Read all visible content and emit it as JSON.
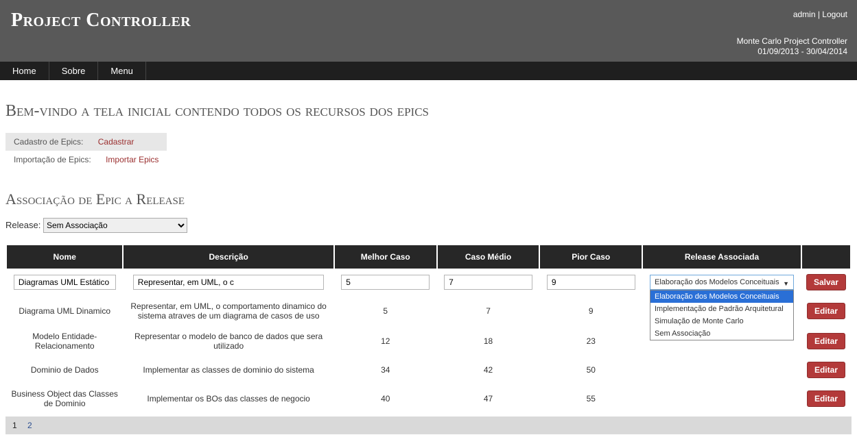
{
  "header": {
    "app_title": "Project Controller",
    "user": "admin",
    "logout": "Logout",
    "separator": " | ",
    "project_name": "Monte Carlo Project Controller",
    "date_range": "01/09/2013 - 30/04/2014"
  },
  "nav": {
    "home": "Home",
    "about": "Sobre",
    "menu": "Menu"
  },
  "page": {
    "heading": "Bem-vindo a tela inicial contendo todos os recursos dos epics",
    "actions": {
      "register_label": "Cadastro de Epics:",
      "register_link": "Cadastrar",
      "import_label": "Importação de Epics:",
      "import_link": "Importar Epics"
    },
    "assoc_heading": "Associação de Epic a Release",
    "release_label": "Release:",
    "release_selected": "Sem Associação"
  },
  "table": {
    "columns": {
      "nome": "Nome",
      "descricao": "Descrição",
      "melhor": "Melhor Caso",
      "medio": "Caso Médio",
      "pior": "Pior Caso",
      "release": "Release Associada"
    },
    "edit_row": {
      "nome": "Diagramas UML Estático",
      "descricao": "Representar, em UML, o c",
      "melhor": "5",
      "medio": "7",
      "pior": "9",
      "release_current": "Elaboração dos Modelos Conceituais",
      "release_options": [
        "Elaboração dos Modelos Conceituais",
        "Implementação de Padrão Arquitetural",
        "Simulação de Monte Carlo",
        "Sem Associação"
      ],
      "save_label": "Salvar"
    },
    "rows": [
      {
        "nome": "Diagrama UML Dinamico",
        "descricao": "Representar, em UML, o comportamento dinamico do sistema atraves de um diagrama de casos de uso",
        "melhor": "5",
        "medio": "7",
        "pior": "9"
      },
      {
        "nome": "Modelo Entidade-Relacionamento",
        "descricao": "Representar o modelo de banco de dados que sera utilizado",
        "melhor": "12",
        "medio": "18",
        "pior": "23"
      },
      {
        "nome": "Dominio de Dados",
        "descricao": "Implementar as classes de dominio do sistema",
        "melhor": "34",
        "medio": "42",
        "pior": "50"
      },
      {
        "nome": "Business Object das Classes de Dominio",
        "descricao": "Implementar os BOs das classes de negocio",
        "melhor": "40",
        "medio": "47",
        "pior": "55"
      }
    ],
    "edit_label": "Editar"
  },
  "pager": {
    "pages": [
      "1",
      "2"
    ],
    "current": "1"
  },
  "colors": {
    "banner_bg": "#595959",
    "nav_bg": "#1f1f1f",
    "th_bg": "#272727",
    "link_red": "#9a2e2e",
    "btn_bg": "#b33a3a",
    "dropdown_sel": "#2a6fd6",
    "pager_bg": "#d9d9d9"
  }
}
